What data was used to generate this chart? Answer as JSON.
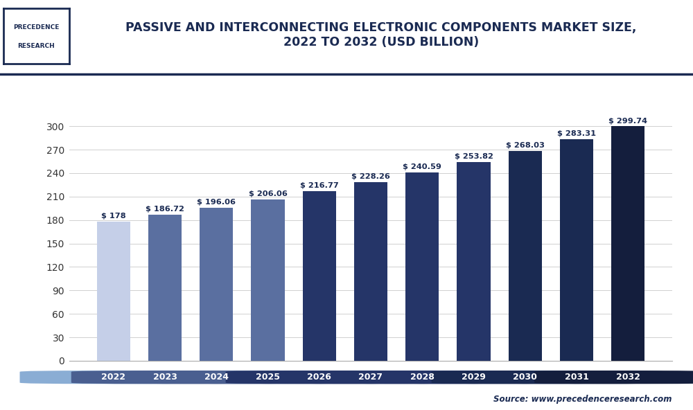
{
  "years": [
    "2022",
    "2023",
    "2024",
    "2025",
    "2026",
    "2027",
    "2028",
    "2029",
    "2030",
    "2031",
    "2032"
  ],
  "values": [
    178,
    186.72,
    196.06,
    206.06,
    216.77,
    228.26,
    240.59,
    253.82,
    268.03,
    283.31,
    299.74
  ],
  "labels": [
    "$ 178",
    "$ 186.72",
    "$ 196.06",
    "$ 206.06",
    "$ 216.77",
    "$ 228.26",
    "$ 240.59",
    "$ 253.82",
    "$ 268.03",
    "$ 283.31",
    "$ 299.74"
  ],
  "bar_colors": [
    "#c5cfe8",
    "#5a6fa0",
    "#5a6fa0",
    "#5a6fa0",
    "#253568",
    "#253568",
    "#253568",
    "#253568",
    "#1a2a52",
    "#1a2a52",
    "#141e3d"
  ],
  "xtick_bg_colors": [
    "#8aadd4",
    "#4a5f90",
    "#4a5f90",
    "#4a5f90",
    "#253568",
    "#253568",
    "#253568",
    "#253568",
    "#1a2a52",
    "#1a2a52",
    "#141e3d"
  ],
  "title_line1": "PASSIVE AND INTERCONNECTING ELECTRONIC COMPONENTS MARKET SIZE,",
  "title_line2": "2022 TO 2032 (USD BILLION)",
  "yticks": [
    0,
    30,
    60,
    90,
    120,
    150,
    180,
    210,
    240,
    270,
    300
  ],
  "ylim": [
    0,
    325
  ],
  "source_text": "Source: www.precedenceresearch.com",
  "bg_color": "#ffffff",
  "title_color": "#1a2a52",
  "grid_color": "#d0d0d0",
  "label_color": "#1a2a52"
}
